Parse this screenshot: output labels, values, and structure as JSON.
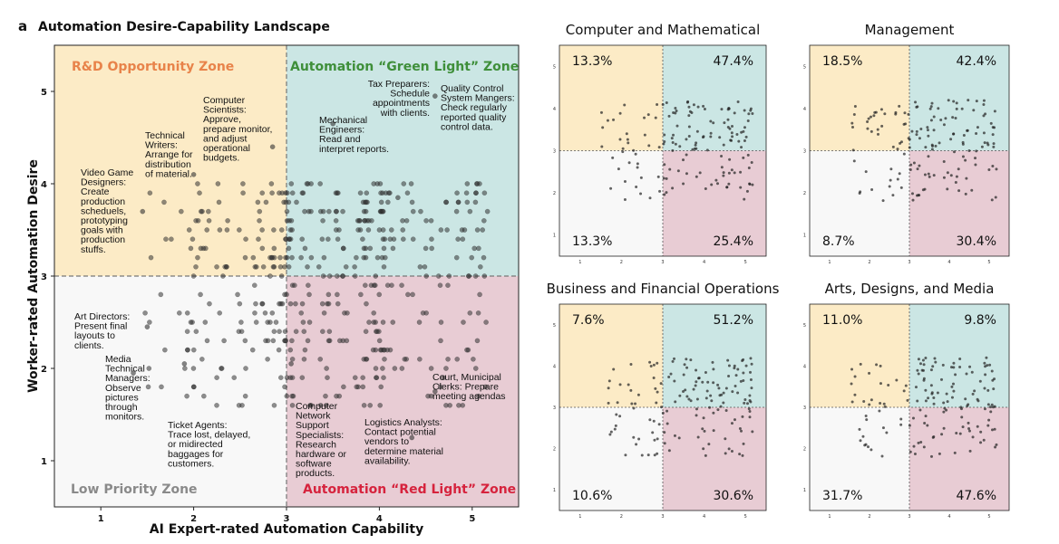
{
  "panel_label": "a",
  "figure_title": "Automation Desire-Capability Landscape",
  "colors": {
    "rd": "#fcebc6",
    "green": "#cbe6e4",
    "low": "#f8f8f8",
    "red": "#e8ccd4",
    "rd_text": "#e8834a",
    "green_text": "#3f8f3a",
    "low_text": "#8a8a8a",
    "red_text": "#d6233d",
    "point": "#333333"
  },
  "chart_data": [
    {
      "type": "scatter",
      "title": "Automation Desire-Capability Landscape",
      "xlabel": "AI Expert-rated Automation Capability",
      "ylabel": "Worker-rated Automation Desire",
      "xlim": [
        0.5,
        5.5
      ],
      "ylim": [
        0.5,
        5.5
      ],
      "xticks": [
        "1",
        "2",
        "3",
        "4",
        "5"
      ],
      "yticks": [
        "1",
        "2",
        "3",
        "4",
        "5"
      ],
      "threshold": {
        "x": 3,
        "y": 3
      },
      "grid": false,
      "zones": {
        "top_left": "R&D Opportunity Zone",
        "top_right": "Automation “Green Light” Zone",
        "bottom_left": "Low Priority Zone",
        "bottom_right": "Automation “Red Light” Zone"
      },
      "annotations": [
        {
          "id": "video-game",
          "lines": [
            "Video Game",
            "Designers:",
            "Create",
            "production",
            "scheduels,",
            "prototyping",
            "goals with",
            "production",
            "stuffs."
          ]
        },
        {
          "id": "technical-writers",
          "lines": [
            "Technical",
            "Writers:",
            "Arrange for",
            "distribution",
            "of material."
          ]
        },
        {
          "id": "computer-scientists",
          "lines": [
            "Computer",
            "Scientists:",
            "Approve,",
            "prepare monitor,",
            "and adjust",
            "operational",
            "budgets."
          ]
        },
        {
          "id": "mechanical-engineers",
          "lines": [
            "Mechanical",
            "Engineers:",
            "Read and",
            "interpret reports."
          ]
        },
        {
          "id": "tax-preparers",
          "lines": [
            "Tax Preparers:",
            "Schedule",
            "appointments",
            "with clients."
          ]
        },
        {
          "id": "quality-control",
          "lines": [
            "Quality Control",
            "System Mangers:",
            "Check regularly",
            "reported quality",
            "control data."
          ]
        },
        {
          "id": "art-directors",
          "lines": [
            "Art Directors:",
            "Present final",
            "layouts to",
            "clients."
          ]
        },
        {
          "id": "media-technical",
          "lines": [
            "Media",
            "Technical",
            "Managers:",
            "Observe",
            "pictures",
            "through",
            "monitors."
          ]
        },
        {
          "id": "ticket-agents",
          "lines": [
            "Ticket Agents:",
            "Trace lost, delayed,",
            "or midirected",
            "baggages for",
            "customers."
          ]
        },
        {
          "id": "computer-network",
          "lines": [
            "Computer",
            "Network",
            "Support",
            "Specialists:",
            "Research",
            "hardware or",
            "software",
            "products."
          ]
        },
        {
          "id": "logistics",
          "lines": [
            "Logistics Analysts:",
            "Contact potential",
            "vendors to",
            "determine material",
            "availability."
          ]
        },
        {
          "id": "court-clerks",
          "lines": [
            "Court, Municipal",
            "Clerks: Prepare",
            "meeting agendas"
          ]
        }
      ]
    },
    {
      "type": "scatter",
      "title": "Computer and Mathematical",
      "xlim": [
        0.5,
        5.5
      ],
      "ylim": [
        0.5,
        5.5
      ],
      "xticks": [
        "1",
        "2",
        "3",
        "4",
        "5"
      ],
      "yticks": [
        "1",
        "2",
        "3",
        "4",
        "5"
      ],
      "quadrants": {
        "top_left": "13.3%",
        "top_right": "47.4%",
        "bottom_left": "13.3%",
        "bottom_right": "25.4%"
      }
    },
    {
      "type": "scatter",
      "title": "Management",
      "xlim": [
        0.5,
        5.5
      ],
      "ylim": [
        0.5,
        5.5
      ],
      "xticks": [
        "1",
        "2",
        "3",
        "4",
        "5"
      ],
      "yticks": [
        "1",
        "2",
        "3",
        "4",
        "5"
      ],
      "quadrants": {
        "top_left": "18.5%",
        "top_right": "42.4%",
        "bottom_left": "8.7%",
        "bottom_right": "30.4%"
      }
    },
    {
      "type": "scatter",
      "title": "Business and Financial Operations",
      "xlim": [
        0.5,
        5.5
      ],
      "ylim": [
        0.5,
        5.5
      ],
      "xticks": [
        "1",
        "2",
        "3",
        "4",
        "5"
      ],
      "yticks": [
        "1",
        "2",
        "3",
        "4",
        "5"
      ],
      "quadrants": {
        "top_left": "7.6%",
        "top_right": "51.2%",
        "bottom_left": "10.6%",
        "bottom_right": "30.6%"
      }
    },
    {
      "type": "scatter",
      "title": "Arts, Designs, and Media",
      "xlim": [
        0.5,
        5.5
      ],
      "ylim": [
        0.5,
        5.5
      ],
      "xticks": [
        "1",
        "2",
        "3",
        "4",
        "5"
      ],
      "yticks": [
        "1",
        "2",
        "3",
        "4",
        "5"
      ],
      "quadrants": {
        "top_left": "11.0%",
        "top_right": "9.8%",
        "bottom_left": "31.7%",
        "bottom_right": "47.6%"
      }
    }
  ]
}
